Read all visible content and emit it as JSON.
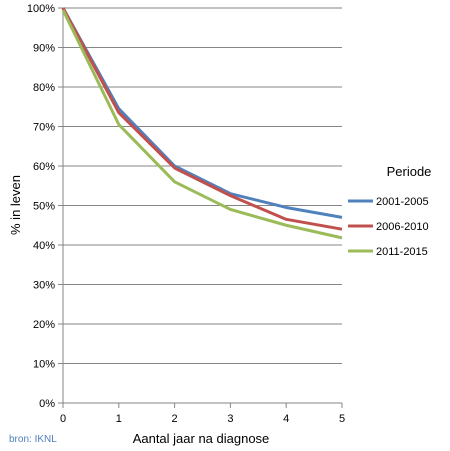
{
  "chart_data": {
    "type": "line",
    "title": "",
    "xlabel": "Aantal jaar na diagnose",
    "ylabel": "% in leven",
    "x": [
      0,
      1,
      2,
      3,
      4,
      5
    ],
    "x_ticks": [
      "0",
      "1",
      "2",
      "3",
      "4",
      "5"
    ],
    "y_ticks": [
      "0%",
      "10%",
      "20%",
      "30%",
      "40%",
      "50%",
      "60%",
      "70%",
      "80%",
      "90%",
      "100%"
    ],
    "xlim": [
      0,
      5
    ],
    "ylim": [
      0,
      100
    ],
    "grid": "horizontal",
    "legend": {
      "title": "Periode",
      "position": "right"
    },
    "series": [
      {
        "name": "2001-2005",
        "color": "#4f81bd",
        "values": [
          100,
          74.5,
          60,
          53,
          49.5,
          47
        ]
      },
      {
        "name": "2006-2010",
        "color": "#c0504d",
        "values": [
          100,
          73.5,
          59.5,
          52.5,
          46.5,
          44
        ]
      },
      {
        "name": "2011-2015",
        "color": "#9bbb59",
        "values": [
          99.5,
          70.5,
          56,
          49,
          45,
          41.8
        ]
      }
    ]
  },
  "source_note": "bron: IKNL"
}
